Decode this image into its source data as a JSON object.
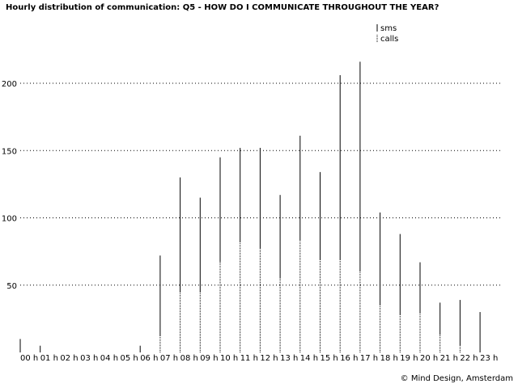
{
  "chart_data": {
    "type": "bar",
    "title": "Hourly distribution of communication: Q5 - HOW DO I COMMUNICATE THROUGHOUT THE YEAR?",
    "xlabel": "",
    "ylabel": "",
    "ylim": [
      0,
      225
    ],
    "yticks": [
      50,
      100,
      150,
      200
    ],
    "grid": true,
    "legend_position": "top-right",
    "categories": [
      "00 h",
      "01 h",
      "02 h",
      "03 h",
      "04 h",
      "05 h",
      "06 h",
      "07 h",
      "08 h",
      "09 h",
      "10 h",
      "11 h",
      "12 h",
      "13 h",
      "14 h",
      "15 h",
      "16 h",
      "17 h",
      "18 h",
      "19 h",
      "20 h",
      "21 h",
      "22 h",
      "23 h"
    ],
    "series": [
      {
        "name": "sms",
        "style": "solid",
        "values": [
          10,
          5,
          0,
          0,
          0,
          0,
          5,
          60,
          85,
          70,
          78,
          70,
          75,
          62,
          78,
          65,
          137,
          156,
          69,
          60,
          38,
          24,
          34,
          30
        ]
      },
      {
        "name": "calls",
        "style": "dotted",
        "values": [
          0,
          0,
          0,
          0,
          0,
          0,
          0,
          12,
          45,
          45,
          67,
          82,
          77,
          55,
          83,
          69,
          69,
          60,
          35,
          28,
          29,
          13,
          5,
          0
        ]
      }
    ]
  },
  "footer": {
    "credit": "© Mind Design, Amsterdam"
  }
}
